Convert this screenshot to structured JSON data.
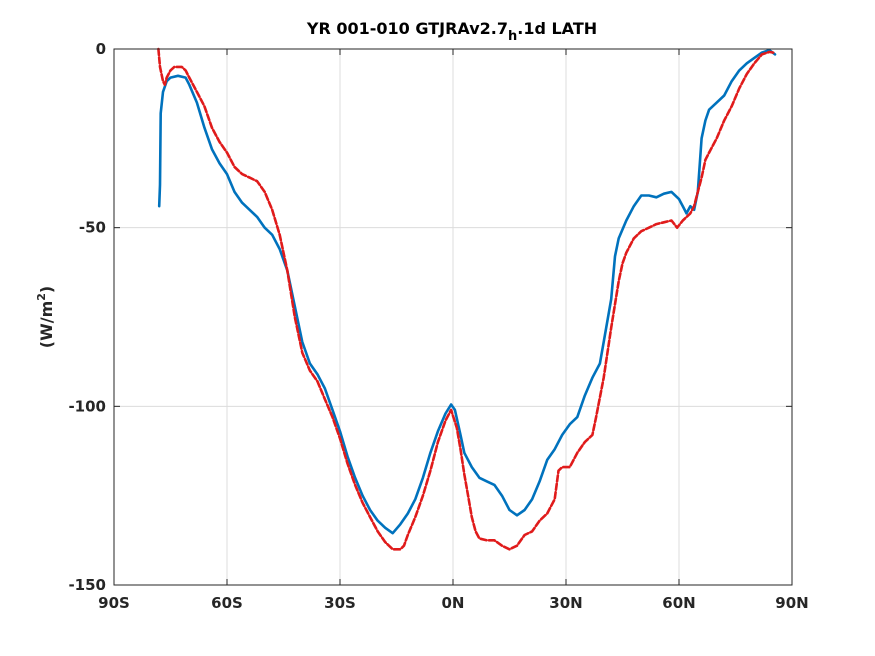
{
  "chart_data": {
    "type": "line",
    "title": {
      "main": "YR 001-010 GTJRAv2.7",
      "subscript": "h",
      "rest": ".1d LATH"
    },
    "xlabel": "",
    "ylabel": {
      "prefix": "(W/m",
      "superscript": "2",
      "suffix": ")"
    },
    "xlim": [
      -90,
      90
    ],
    "ylim": [
      -150,
      0
    ],
    "grid": true,
    "x_ticks": [
      {
        "value": -90,
        "label": "90S"
      },
      {
        "value": -60,
        "label": "60S"
      },
      {
        "value": -30,
        "label": "30S"
      },
      {
        "value": 0,
        "label": "0N"
      },
      {
        "value": 30,
        "label": "30N"
      },
      {
        "value": 60,
        "label": "60N"
      },
      {
        "value": 90,
        "label": "90N"
      }
    ],
    "y_ticks": [
      {
        "value": 0,
        "label": "0"
      },
      {
        "value": -50,
        "label": "-50"
      },
      {
        "value": -100,
        "label": "-100"
      },
      {
        "value": -150,
        "label": "-150"
      }
    ],
    "series": [
      {
        "color": "#0072BD",
        "style": "solid",
        "points": [
          [
            -78,
            -44
          ],
          [
            -77.8,
            -38
          ],
          [
            -77.6,
            -18
          ],
          [
            -77,
            -12
          ],
          [
            -76,
            -9
          ],
          [
            -75,
            -8
          ],
          [
            -73,
            -7.5
          ],
          [
            -71,
            -8
          ],
          [
            -70,
            -10
          ],
          [
            -68,
            -15
          ],
          [
            -66,
            -22
          ],
          [
            -64,
            -28
          ],
          [
            -62,
            -32
          ],
          [
            -60,
            -35
          ],
          [
            -58,
            -40
          ],
          [
            -56,
            -43
          ],
          [
            -54,
            -45
          ],
          [
            -52,
            -47
          ],
          [
            -50,
            -50
          ],
          [
            -48,
            -52
          ],
          [
            -46,
            -56
          ],
          [
            -44,
            -62
          ],
          [
            -42,
            -72
          ],
          [
            -40,
            -82
          ],
          [
            -38,
            -88
          ],
          [
            -36,
            -91
          ],
          [
            -34,
            -95
          ],
          [
            -32,
            -101
          ],
          [
            -30,
            -107
          ],
          [
            -28,
            -114
          ],
          [
            -26,
            -120
          ],
          [
            -24,
            -125
          ],
          [
            -22,
            -129
          ],
          [
            -20,
            -132
          ],
          [
            -18,
            -134
          ],
          [
            -16,
            -135.5
          ],
          [
            -14,
            -133
          ],
          [
            -12,
            -130
          ],
          [
            -10,
            -126
          ],
          [
            -8,
            -120
          ],
          [
            -6,
            -113
          ],
          [
            -4,
            -107
          ],
          [
            -2,
            -102
          ],
          [
            -0.5,
            -99.5
          ],
          [
            0.5,
            -101
          ],
          [
            2,
            -108
          ],
          [
            3,
            -113
          ],
          [
            5,
            -117
          ],
          [
            7,
            -120
          ],
          [
            9,
            -121
          ],
          [
            11,
            -122
          ],
          [
            13,
            -125
          ],
          [
            15,
            -129
          ],
          [
            17,
            -130.5
          ],
          [
            19,
            -129
          ],
          [
            21,
            -126
          ],
          [
            23,
            -121
          ],
          [
            25,
            -115
          ],
          [
            27,
            -112
          ],
          [
            29,
            -108
          ],
          [
            31,
            -105
          ],
          [
            33,
            -103
          ],
          [
            35,
            -97
          ],
          [
            37,
            -92
          ],
          [
            39,
            -88
          ],
          [
            40,
            -82
          ],
          [
            42,
            -70
          ],
          [
            43,
            -58
          ],
          [
            44,
            -53
          ],
          [
            46,
            -48
          ],
          [
            48,
            -44
          ],
          [
            50,
            -41
          ],
          [
            52,
            -41
          ],
          [
            54,
            -41.5
          ],
          [
            56,
            -40.5
          ],
          [
            58,
            -40
          ],
          [
            60,
            -42
          ],
          [
            61,
            -44
          ],
          [
            62,
            -46
          ],
          [
            63,
            -44
          ],
          [
            64,
            -45
          ],
          [
            65,
            -40
          ],
          [
            66,
            -25
          ],
          [
            67,
            -20
          ],
          [
            68,
            -17
          ],
          [
            70,
            -15
          ],
          [
            72,
            -13
          ],
          [
            74,
            -9
          ],
          [
            76,
            -6
          ],
          [
            78,
            -4
          ],
          [
            80,
            -2.5
          ],
          [
            82,
            -1
          ],
          [
            84,
            -0.3
          ],
          [
            85.5,
            -1.5
          ]
        ]
      },
      {
        "color": "#E01B1B",
        "style": "dashed",
        "points": [
          [
            -78.2,
            0
          ],
          [
            -77.8,
            -5
          ],
          [
            -77,
            -9
          ],
          [
            -76.5,
            -10
          ],
          [
            -76,
            -8
          ],
          [
            -75,
            -6
          ],
          [
            -74,
            -5
          ],
          [
            -72,
            -5
          ],
          [
            -71,
            -6
          ],
          [
            -70,
            -8
          ],
          [
            -68,
            -12
          ],
          [
            -66,
            -16
          ],
          [
            -64,
            -22
          ],
          [
            -62,
            -26
          ],
          [
            -60,
            -29
          ],
          [
            -58,
            -33
          ],
          [
            -56,
            -35
          ],
          [
            -54,
            -36
          ],
          [
            -52,
            -37
          ],
          [
            -50,
            -40
          ],
          [
            -48,
            -45
          ],
          [
            -46,
            -52
          ],
          [
            -44,
            -62
          ],
          [
            -42,
            -75
          ],
          [
            -40,
            -85
          ],
          [
            -38,
            -90
          ],
          [
            -36,
            -93
          ],
          [
            -34,
            -98
          ],
          [
            -32,
            -103
          ],
          [
            -30,
            -109
          ],
          [
            -28,
            -116
          ],
          [
            -26,
            -122
          ],
          [
            -24,
            -127
          ],
          [
            -22,
            -131
          ],
          [
            -20,
            -135
          ],
          [
            -18,
            -138
          ],
          [
            -16,
            -140
          ],
          [
            -14,
            -140
          ],
          [
            -13,
            -139
          ],
          [
            -12,
            -136
          ],
          [
            -10,
            -131
          ],
          [
            -8,
            -125
          ],
          [
            -6,
            -118
          ],
          [
            -4,
            -110
          ],
          [
            -2,
            -104
          ],
          [
            -0.5,
            -101
          ],
          [
            1,
            -106
          ],
          [
            2,
            -112
          ],
          [
            3,
            -119
          ],
          [
            4,
            -125
          ],
          [
            5,
            -131
          ],
          [
            6,
            -135
          ],
          [
            7,
            -137
          ],
          [
            9,
            -137.5
          ],
          [
            11,
            -137.5
          ],
          [
            13,
            -139
          ],
          [
            15,
            -140
          ],
          [
            17,
            -139
          ],
          [
            19,
            -136
          ],
          [
            21,
            -135
          ],
          [
            23,
            -132
          ],
          [
            25,
            -130
          ],
          [
            27,
            -126
          ],
          [
            28,
            -118
          ],
          [
            29,
            -117
          ],
          [
            31,
            -117
          ],
          [
            33,
            -113
          ],
          [
            35,
            -110
          ],
          [
            37,
            -108
          ],
          [
            38,
            -103
          ],
          [
            40,
            -92
          ],
          [
            42,
            -78
          ],
          [
            44,
            -65
          ],
          [
            45,
            -60
          ],
          [
            46,
            -57
          ],
          [
            48,
            -53
          ],
          [
            50,
            -51
          ],
          [
            52,
            -50
          ],
          [
            54,
            -49
          ],
          [
            56,
            -48.5
          ],
          [
            58,
            -48
          ],
          [
            59.5,
            -50
          ],
          [
            61,
            -48
          ],
          [
            63,
            -46
          ],
          [
            64,
            -44
          ],
          [
            65,
            -40
          ],
          [
            66,
            -36
          ],
          [
            67,
            -31
          ],
          [
            68,
            -29
          ],
          [
            70,
            -25
          ],
          [
            72,
            -20
          ],
          [
            74,
            -16
          ],
          [
            76,
            -11
          ],
          [
            78,
            -7
          ],
          [
            80,
            -4
          ],
          [
            82,
            -1.5
          ],
          [
            84,
            -0.8
          ],
          [
            85,
            -1
          ]
        ]
      }
    ]
  }
}
